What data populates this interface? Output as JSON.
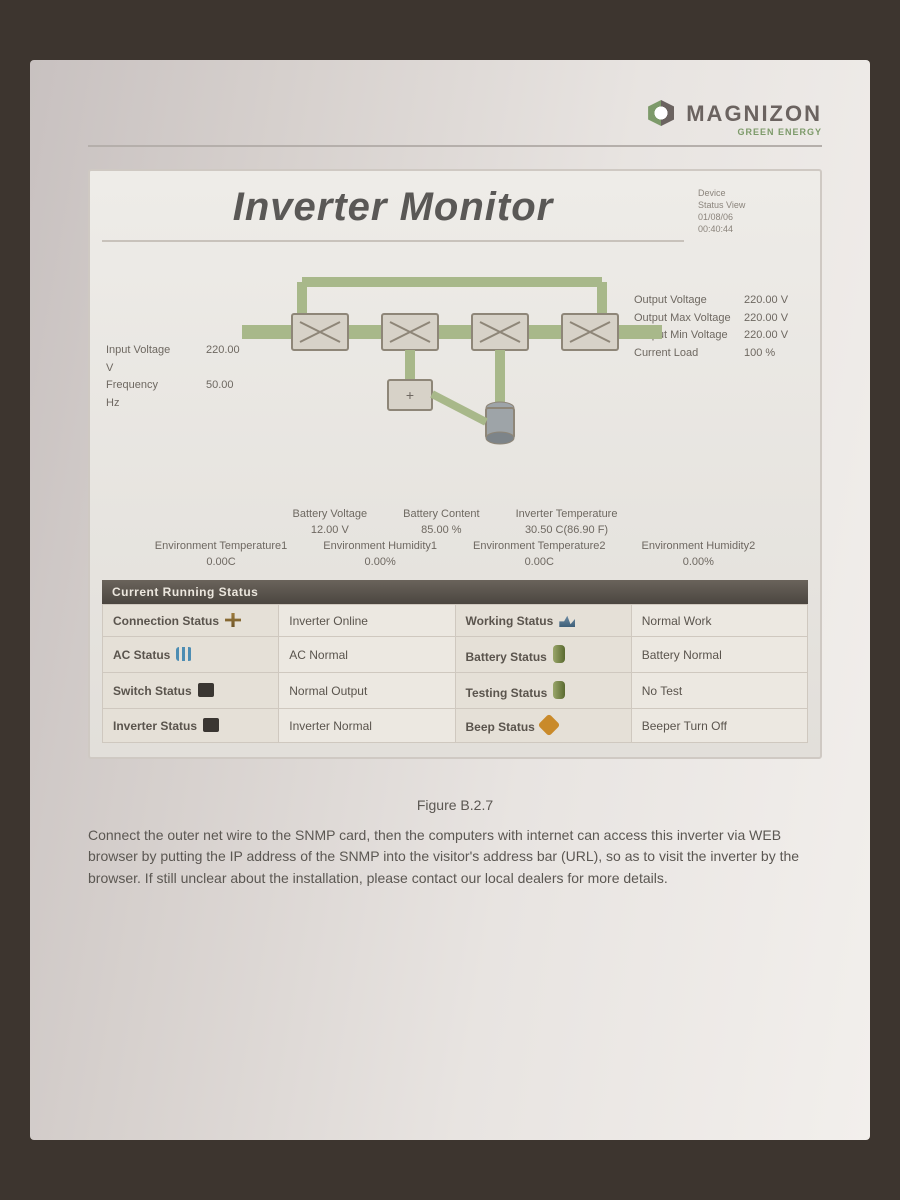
{
  "brand": {
    "name": "MAGNIZON",
    "tagline": "GREEN ENERGY"
  },
  "monitor": {
    "title": "Inverter Monitor",
    "meta": [
      "Device",
      "Status View",
      "01/08/06",
      "00:40:44"
    ],
    "input": {
      "voltage_label": "Input Voltage",
      "voltage_value": "220.00 V",
      "frequency_label": "Frequency",
      "frequency_value": "50.00 Hz"
    },
    "output": {
      "voltage_label": "Output Voltage",
      "voltage_value": "220.00 V",
      "max_label": "Output Max Voltage",
      "max_value": "220.00 V",
      "min_label": "Output Min Voltage",
      "min_value": "220.00 V",
      "load_label": "Current Load",
      "load_value": "100 %"
    },
    "mid_row1": {
      "battery_voltage_label": "Battery Voltage",
      "battery_voltage_value": "12.00 V",
      "battery_content_label": "Battery Content",
      "battery_content_value": "85.00 %",
      "inv_temp_label": "Inverter Temperature",
      "inv_temp_value": "30.50 C(86.90 F)"
    },
    "mid_row2": {
      "env_t1_label": "Environment Temperature1",
      "env_t1_value": "0.00C",
      "env_h1_label": "Environment Humidity1",
      "env_h1_value": "0.00%",
      "env_t2_label": "Environment Temperature2",
      "env_t2_value": "0.00C",
      "env_h2_label": "Environment Humidity2",
      "env_h2_value": "0.00%"
    },
    "status_header": "Current Running Status",
    "status_rows": [
      {
        "l1": "Connection Status",
        "v1": "Inverter Online",
        "l2": "Working Status",
        "v2": "Normal Work"
      },
      {
        "l1": "AC Status",
        "v1": "AC Normal",
        "l2": "Battery Status",
        "v2": "Battery Normal"
      },
      {
        "l1": "Switch Status",
        "v1": "Normal Output",
        "l2": "Testing Status",
        "v2": "No Test"
      },
      {
        "l1": "Inverter Status",
        "v1": "Inverter Normal",
        "l2": "Beep Status",
        "v2": "Beeper Turn Off"
      }
    ],
    "diagram": {
      "bus_color": "#a8b88a",
      "node_fill": "#d7d2c8",
      "node_stroke": "#8e8678",
      "cap_fill": "#9ea4a8"
    }
  },
  "caption": {
    "figure": "Figure B.2.7",
    "text": "Connect the outer net wire to the SNMP card, then the computers with internet can access this inverter via WEB browser by putting the IP address of the SNMP into the visitor's address bar (URL), so as to visit the inverter by the browser. If still unclear about the installation, please contact our local dealers for more details."
  },
  "colors": {
    "page_text": "#4a4a4a"
  }
}
